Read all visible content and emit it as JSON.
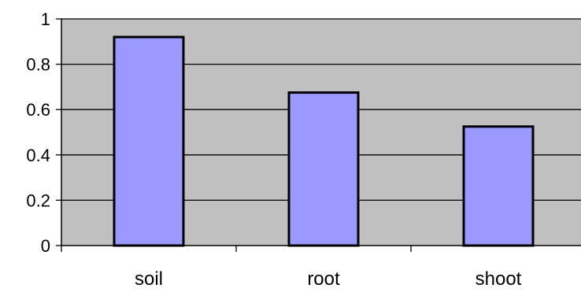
{
  "chart_data": {
    "type": "bar",
    "categories": [
      "soil",
      "root",
      "shoot"
    ],
    "values": [
      0.92,
      0.675,
      0.525
    ],
    "y_ticks": [
      "0",
      "0.2",
      "0.4",
      "0.6",
      "0.8",
      "1"
    ],
    "ylim": [
      0,
      1
    ],
    "grid": true,
    "legend": "none",
    "colors": {
      "plot_background": "#c0c0c0",
      "bar_fill": "#9999ff",
      "bar_stroke": "#000000",
      "gridline": "#000000",
      "axis": "#000000"
    }
  }
}
